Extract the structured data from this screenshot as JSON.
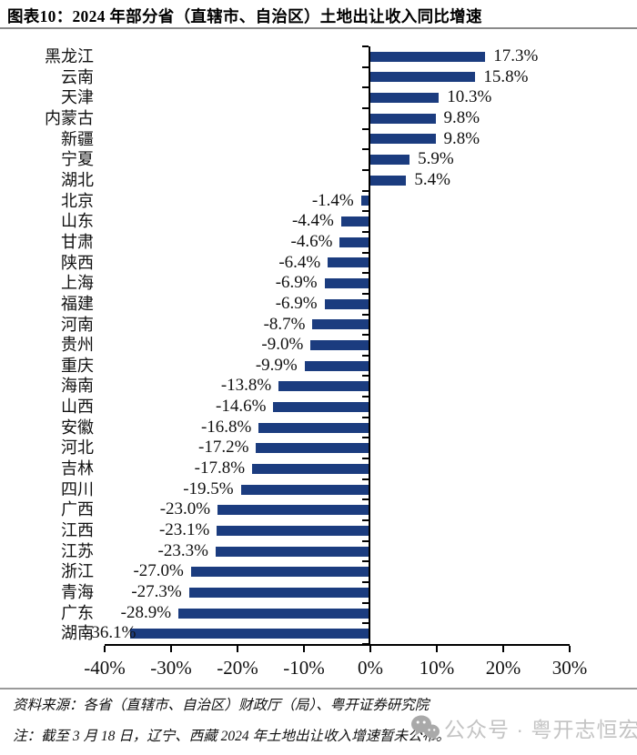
{
  "header": {
    "title": "图表10：2024 年部分省（直辖市、自治区）土地出让收入同比增速"
  },
  "chart_data": {
    "type": "bar",
    "orientation": "horizontal",
    "title": "2024 年部分省（直辖市、自治区）土地出让收入同比增速",
    "categories": [
      "黑龙江",
      "云南",
      "天津",
      "内蒙古",
      "新疆",
      "宁夏",
      "湖北",
      "北京",
      "山东",
      "甘肃",
      "陕西",
      "上海",
      "福建",
      "河南",
      "贵州",
      "重庆",
      "海南",
      "山西",
      "安徽",
      "河北",
      "吉林",
      "四川",
      "广西",
      "江西",
      "江苏",
      "浙江",
      "青海",
      "广东",
      "湖南"
    ],
    "values": [
      17.3,
      15.8,
      10.3,
      9.8,
      9.8,
      5.9,
      5.4,
      -1.4,
      -4.4,
      -4.6,
      -6.4,
      -6.9,
      -6.9,
      -8.7,
      -9.0,
      -9.9,
      -13.8,
      -14.6,
      -16.8,
      -17.2,
      -17.8,
      -19.5,
      -23.0,
      -23.1,
      -23.3,
      -27.0,
      -27.3,
      -28.9,
      -36.1
    ],
    "value_labels": [
      "17.3%",
      "15.8%",
      "10.3%",
      "9.8%",
      "9.8%",
      "5.9%",
      "5.4%",
      "-1.4%",
      "-4.4%",
      "-4.6%",
      "-6.4%",
      "-6.9%",
      "-6.9%",
      "-8.7%",
      "-9.0%",
      "-9.9%",
      "-13.8%",
      "-14.6%",
      "-16.8%",
      "-17.2%",
      "-17.8%",
      "-19.5%",
      "-23.0%",
      "-23.1%",
      "-23.3%",
      "-27.0%",
      "-27.3%",
      "-28.9%",
      "-36.1%"
    ],
    "x_ticks": {
      "labels": [
        "-40%",
        "-30%",
        "-20%",
        "-10%",
        "0%",
        "10%",
        "20%",
        "30%"
      ],
      "values": [
        -40,
        -30,
        -20,
        -10,
        0,
        10,
        20,
        30
      ]
    },
    "xlim": [
      -40,
      30
    ],
    "grid": false,
    "legend": false,
    "bar_color": "#1B3C7F",
    "axis_color": "#000000"
  },
  "footer": {
    "source": "资料来源：各省（直辖市、自治区）财政厅（局）、粤开证券研究院",
    "note": "注：截至 3 月 18 日，辽宁、西藏 2024 年土地出让收入增速暂未公布。",
    "watermark": {
      "icon": "wechat-icon",
      "text": "公众号 · 粤开志恒宏观",
      "color": "#c3c3c3"
    }
  }
}
